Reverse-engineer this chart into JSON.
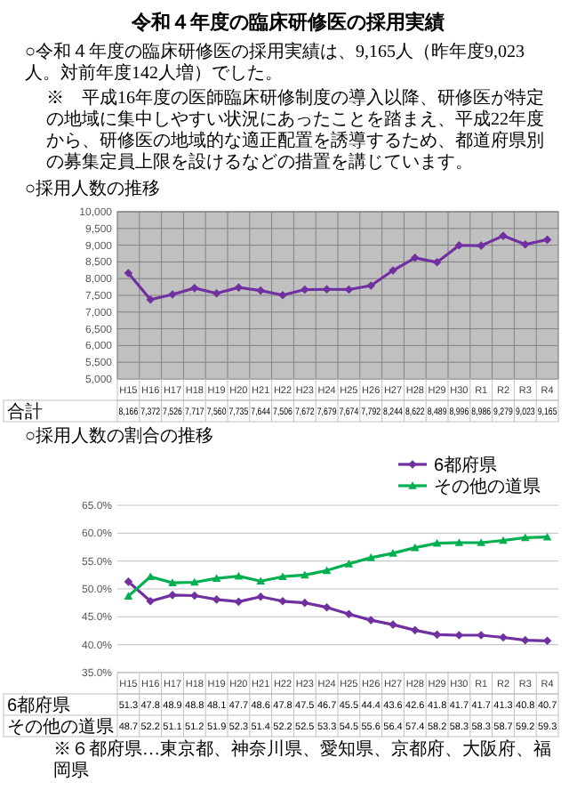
{
  "chart_data": [
    {
      "type": "other",
      "title": "令和４年度の臨床研修医の採用実績",
      "annotations": [
        "○令和４年度の臨床研修医の採用実績は、9,165人（昨年度9,023人。対前年度142人増）でした。",
        "※　平成16年度の医師臨床研修制度の導入以降、研修医が特定の地域に集中しやすい状況にあったことを踏まえ、平成22年度から、研修医の地域的な適正配置を誘導するため、都道府県別の募集定員上限を設けるなどの措置を講じています。"
      ]
    },
    {
      "type": "line",
      "title": "○採用人数の推移",
      "categories": [
        "H15",
        "H16",
        "H17",
        "H18",
        "H19",
        "H20",
        "H21",
        "H22",
        "H23",
        "H24",
        "H25",
        "H26",
        "H27",
        "H28",
        "H29",
        "H30",
        "R1",
        "R2",
        "R3",
        "R4"
      ],
      "series": [
        {
          "name": "合計",
          "color": "#7030a0",
          "marker": "diamond",
          "values": [
            8166,
            7372,
            7526,
            7717,
            7560,
            7735,
            7644,
            7506,
            7672,
            7679,
            7674,
            7792,
            8244,
            8622,
            8489,
            8996,
            8986,
            9279,
            9023,
            9165
          ],
          "value_labels": [
            "8,166",
            "7,372",
            "7,526",
            "7,717",
            "7,560",
            "7,735",
            "7,644",
            "7,506",
            "7,672",
            "7,679",
            "7,674",
            "7,792",
            "8,244",
            "8,622",
            "8,489",
            "8,996",
            "8,986",
            "9,279",
            "9,023",
            "9,165"
          ]
        }
      ],
      "ylim": [
        5000,
        10000
      ],
      "yticks": [
        {
          "value": 5000,
          "label": "5,000"
        },
        {
          "value": 5500,
          "label": "5,500"
        },
        {
          "value": 6000,
          "label": "6,000"
        },
        {
          "value": 6500,
          "label": "6,500"
        },
        {
          "value": 7000,
          "label": "7,000"
        },
        {
          "value": 7500,
          "label": "7,500"
        },
        {
          "value": 8000,
          "label": "8,000"
        },
        {
          "value": 8500,
          "label": "8,500"
        },
        {
          "value": 9000,
          "label": "9,000"
        },
        {
          "value": 9500,
          "label": "9,500"
        },
        {
          "value": 10000,
          "label": "10,000"
        }
      ],
      "grid": true
    },
    {
      "type": "line",
      "title": "○採用人数の割合の推移",
      "categories": [
        "H15",
        "H16",
        "H17",
        "H18",
        "H19",
        "H20",
        "H21",
        "H22",
        "H23",
        "H24",
        "H25",
        "H26",
        "H27",
        "H28",
        "H29",
        "H30",
        "R1",
        "R2",
        "R3",
        "R4"
      ],
      "series": [
        {
          "name": "6都府県",
          "color": "#7030a0",
          "marker": "diamond",
          "values": [
            51.3,
            47.8,
            48.9,
            48.8,
            48.1,
            47.7,
            48.6,
            47.8,
            47.5,
            46.7,
            45.5,
            44.4,
            43.6,
            42.6,
            41.8,
            41.7,
            41.7,
            41.3,
            40.8,
            40.7
          ]
        },
        {
          "name": "その他の道県",
          "color": "#00b050",
          "marker": "triangle",
          "values": [
            48.7,
            52.2,
            51.1,
            51.2,
            51.9,
            52.3,
            51.4,
            52.2,
            52.5,
            53.3,
            54.5,
            55.6,
            56.4,
            57.4,
            58.2,
            58.3,
            58.3,
            58.7,
            59.2,
            59.3
          ]
        }
      ],
      "ylim": [
        35,
        65
      ],
      "yticks": [
        {
          "value": 35,
          "label": "35.0%"
        },
        {
          "value": 40,
          "label": "40.0%"
        },
        {
          "value": 45,
          "label": "45.0%"
        },
        {
          "value": 50,
          "label": "50.0%"
        },
        {
          "value": 55,
          "label": "55.0%"
        },
        {
          "value": 60,
          "label": "60.0%"
        },
        {
          "value": 65,
          "label": "65.0%"
        }
      ],
      "grid": "y",
      "legend": "top right",
      "data_labels": true,
      "annotations": [
        "※６都府県…東京都、神奈川県、愛知県、京都府、大阪府、福岡県"
      ]
    }
  ]
}
